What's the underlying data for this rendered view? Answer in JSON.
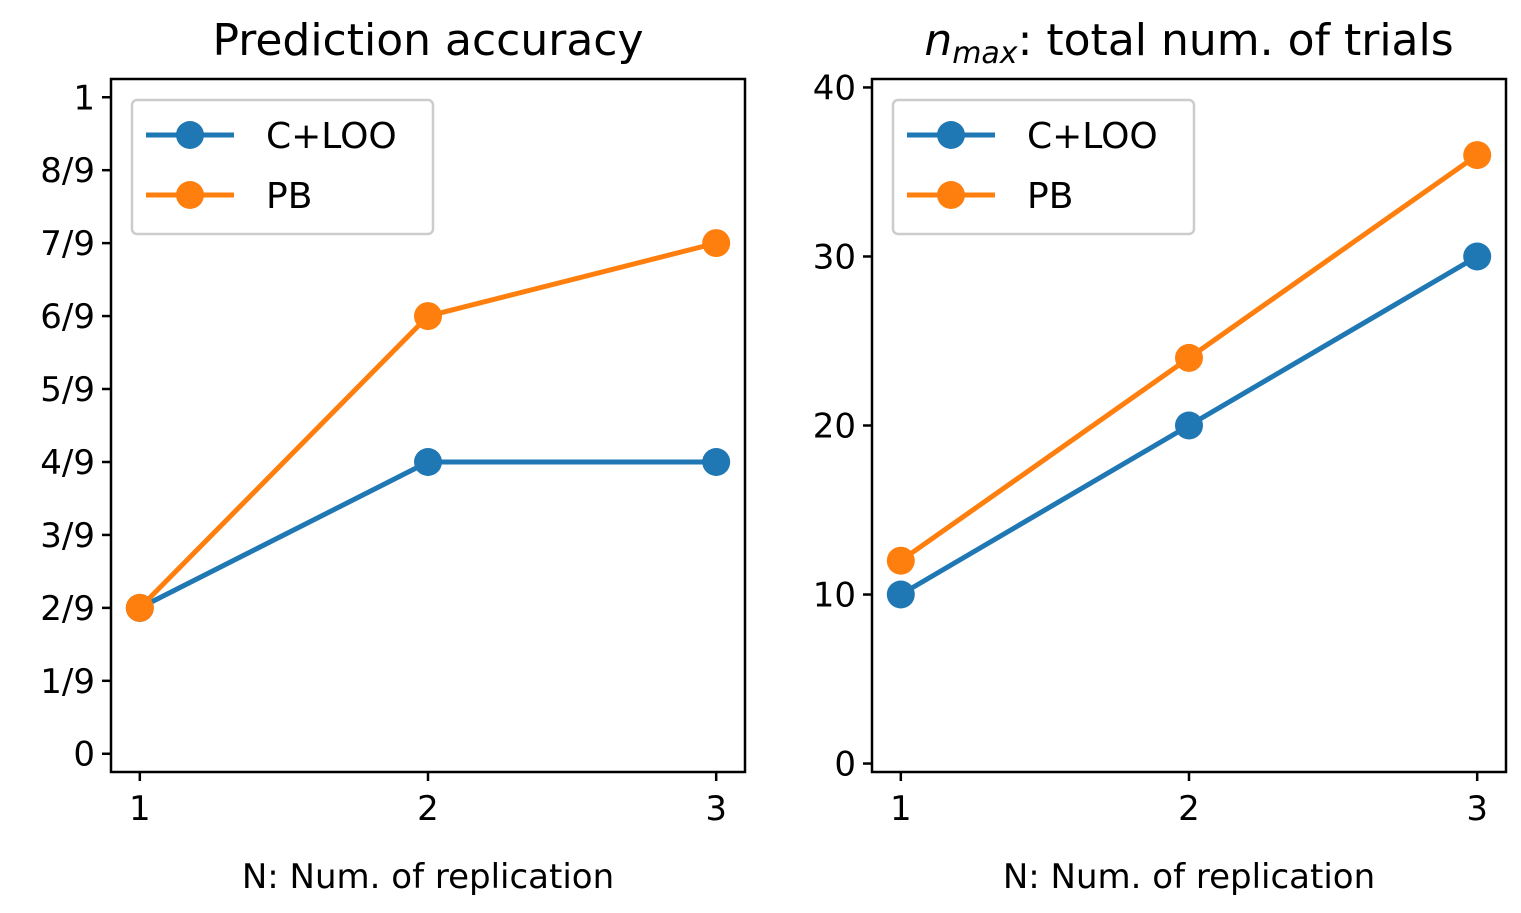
{
  "chart_data": [
    {
      "type": "line",
      "title": "Prediction accuracy",
      "xlabel": "N: Num. of replication",
      "ylabel": "",
      "x": [
        1,
        2,
        3
      ],
      "xlim": [
        0.9,
        3.1
      ],
      "ylim": [
        -0.0278,
        1.0278
      ],
      "xticks": [
        1,
        2,
        3
      ],
      "xtick_labels": [
        "1",
        "2",
        "3"
      ],
      "yticks": [
        0,
        0.1111,
        0.2222,
        0.3333,
        0.4444,
        0.5556,
        0.6667,
        0.7778,
        0.8889,
        1
      ],
      "ytick_labels": [
        "0",
        "1/9",
        "2/9",
        "3/9",
        "4/9",
        "5/9",
        "6/9",
        "7/9",
        "8/9",
        "1"
      ],
      "grid": false,
      "legend_position": "top-left",
      "series": [
        {
          "name": "C+LOO",
          "color": "#1f77b4",
          "values": [
            0.2222,
            0.4444,
            0.4444
          ]
        },
        {
          "name": "PB",
          "color": "#ff7f0e",
          "values": [
            0.2222,
            0.6667,
            0.7778
          ]
        }
      ]
    },
    {
      "type": "line",
      "title": "n",
      "title_subscript": "max",
      "title_rest": ": total num. of trials",
      "xlabel": "N: Num. of replication",
      "ylabel": "",
      "x": [
        1,
        2,
        3
      ],
      "xlim": [
        0.9,
        3.1
      ],
      "ylim": [
        -0.5,
        40.5
      ],
      "xticks": [
        1,
        2,
        3
      ],
      "xtick_labels": [
        "1",
        "2",
        "3"
      ],
      "yticks": [
        0,
        10,
        20,
        30,
        40
      ],
      "ytick_labels": [
        "0",
        "10",
        "20",
        "30",
        "40"
      ],
      "grid": false,
      "legend_position": "top-left",
      "series": [
        {
          "name": "C+LOO",
          "color": "#1f77b4",
          "values": [
            10,
            20,
            30
          ]
        },
        {
          "name": "PB",
          "color": "#ff7f0e",
          "values": [
            12,
            24,
            36
          ]
        }
      ]
    }
  ]
}
